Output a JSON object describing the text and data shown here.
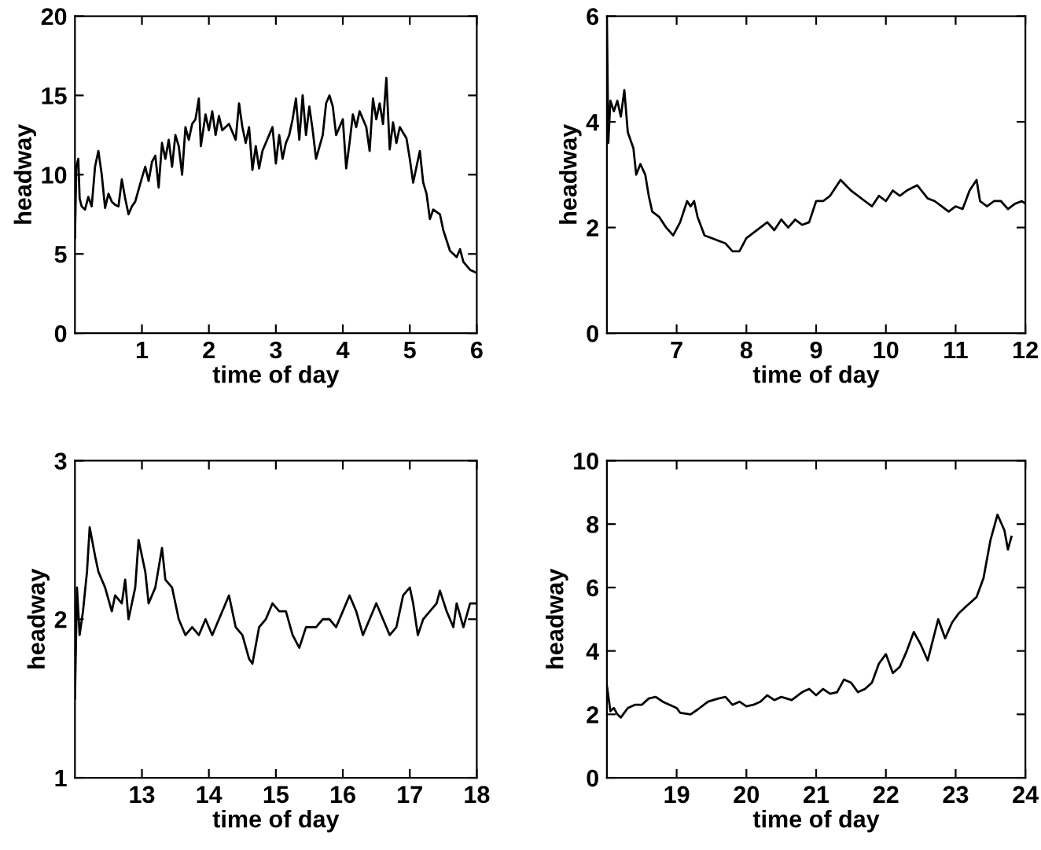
{
  "chart_data": [
    {
      "type": "line",
      "xlabel": "time of day",
      "ylabel": "headway",
      "xlim": [
        0,
        6
      ],
      "xticks": [
        1,
        2,
        3,
        4,
        5,
        6
      ],
      "ylim": [
        0,
        20
      ],
      "yticks": [
        0,
        5,
        10,
        15,
        20
      ],
      "grid": false,
      "legend": false,
      "series": [
        {
          "color": "#000000",
          "x": [
            0.0,
            0.02,
            0.05,
            0.07,
            0.1,
            0.15,
            0.2,
            0.25,
            0.3,
            0.35,
            0.4,
            0.45,
            0.5,
            0.55,
            0.6,
            0.65,
            0.7,
            0.75,
            0.8,
            0.85,
            0.9,
            1.0,
            1.05,
            1.1,
            1.15,
            1.2,
            1.25,
            1.3,
            1.35,
            1.4,
            1.45,
            1.5,
            1.55,
            1.6,
            1.65,
            1.7,
            1.75,
            1.8,
            1.85,
            1.88,
            1.95,
            2.0,
            2.05,
            2.1,
            2.15,
            2.2,
            2.3,
            2.4,
            2.45,
            2.5,
            2.55,
            2.6,
            2.65,
            2.7,
            2.75,
            2.8,
            2.9,
            2.95,
            3.0,
            3.05,
            3.1,
            3.15,
            3.2,
            3.25,
            3.3,
            3.35,
            3.4,
            3.45,
            3.5,
            3.55,
            3.6,
            3.7,
            3.75,
            3.8,
            3.85,
            3.9,
            4.0,
            4.05,
            4.1,
            4.15,
            4.2,
            4.25,
            4.35,
            4.4,
            4.45,
            4.5,
            4.55,
            4.6,
            4.65,
            4.7,
            4.75,
            4.8,
            4.85,
            4.95,
            5.0,
            5.05,
            5.1,
            5.15,
            5.2,
            5.25,
            5.3,
            5.35,
            5.45,
            5.5,
            5.6,
            5.7,
            5.75,
            5.8,
            5.9,
            6.0
          ],
          "values": [
            6,
            10.5,
            11,
            8.5,
            8,
            7.8,
            8.6,
            8,
            10.5,
            11.5,
            10,
            7.9,
            8.8,
            8.3,
            8.1,
            8,
            9.7,
            8.5,
            7.5,
            8,
            8.3,
            9.8,
            10.5,
            9.6,
            10.8,
            11.2,
            9.2,
            12,
            11,
            12.2,
            10.5,
            12.5,
            11.8,
            10,
            13,
            12.2,
            13.2,
            13.5,
            14.8,
            11.8,
            13.8,
            12.8,
            14,
            12.5,
            13.7,
            12.8,
            13.2,
            12.2,
            14.5,
            13,
            12,
            13,
            10.3,
            11.8,
            10.4,
            11.5,
            12.5,
            13,
            10.7,
            12.5,
            11,
            12,
            12.5,
            13.5,
            14.8,
            12.2,
            15,
            12.5,
            14.3,
            12.8,
            11,
            12.5,
            14.5,
            15,
            14.3,
            12.5,
            13.5,
            10.4,
            12,
            13.8,
            13,
            14,
            13,
            11.5,
            14.8,
            13.5,
            14.5,
            13.2,
            16.1,
            11.6,
            13.3,
            12,
            13,
            12.3,
            11,
            9.5,
            10.5,
            11.5,
            9.5,
            8.8,
            7.2,
            7.8,
            7.5,
            6.5,
            5.2,
            4.8,
            5.3,
            4.5,
            4,
            3.8
          ]
        }
      ]
    },
    {
      "type": "line",
      "xlabel": "time of day",
      "ylabel": "headway",
      "xlim": [
        6,
        12
      ],
      "xticks": [
        7,
        8,
        9,
        10,
        11,
        12
      ],
      "ylim": [
        0,
        6
      ],
      "yticks": [
        0,
        2,
        4,
        6
      ],
      "grid": false,
      "legend": false,
      "series": [
        {
          "color": "#000000",
          "x": [
            6.0,
            6.02,
            6.05,
            6.1,
            6.15,
            6.2,
            6.25,
            6.3,
            6.38,
            6.42,
            6.48,
            6.55,
            6.6,
            6.65,
            6.75,
            6.85,
            6.95,
            7.05,
            7.15,
            7.2,
            7.25,
            7.3,
            7.4,
            7.5,
            7.6,
            7.7,
            7.8,
            7.9,
            8.0,
            8.1,
            8.2,
            8.3,
            8.4,
            8.5,
            8.6,
            8.7,
            8.8,
            8.9,
            9.0,
            9.1,
            9.2,
            9.35,
            9.5,
            9.6,
            9.7,
            9.8,
            9.9,
            10.0,
            10.1,
            10.2,
            10.3,
            10.45,
            10.6,
            10.7,
            10.8,
            10.9,
            11.0,
            11.1,
            11.2,
            11.3,
            11.35,
            11.45,
            11.55,
            11.65,
            11.75,
            11.85,
            11.95,
            12.0
          ],
          "values": [
            6,
            3.6,
            4.4,
            4.2,
            4.4,
            4.1,
            4.6,
            3.8,
            3.5,
            3.0,
            3.2,
            3.0,
            2.6,
            2.3,
            2.2,
            2.0,
            1.85,
            2.1,
            2.5,
            2.4,
            2.5,
            2.2,
            1.85,
            1.8,
            1.75,
            1.7,
            1.55,
            1.55,
            1.8,
            1.9,
            2.0,
            2.1,
            1.95,
            2.15,
            2.0,
            2.15,
            2.05,
            2.1,
            2.5,
            2.5,
            2.6,
            2.9,
            2.7,
            2.6,
            2.5,
            2.4,
            2.6,
            2.5,
            2.7,
            2.6,
            2.7,
            2.8,
            2.55,
            2.5,
            2.4,
            2.3,
            2.4,
            2.35,
            2.7,
            2.9,
            2.5,
            2.4,
            2.5,
            2.5,
            2.35,
            2.45,
            2.5,
            2.45
          ]
        }
      ]
    },
    {
      "type": "line",
      "xlabel": "time of day",
      "ylabel": "headway",
      "xlim": [
        12,
        18
      ],
      "xticks": [
        13,
        14,
        15,
        16,
        17,
        18
      ],
      "ylim": [
        1,
        3
      ],
      "yticks": [
        1,
        2,
        3
      ],
      "grid": false,
      "legend": false,
      "series": [
        {
          "color": "#000000",
          "x": [
            12.0,
            12.03,
            12.07,
            12.12,
            12.18,
            12.22,
            12.3,
            12.35,
            12.45,
            12.55,
            12.6,
            12.7,
            12.75,
            12.8,
            12.9,
            12.95,
            13.05,
            13.1,
            13.2,
            13.3,
            13.35,
            13.45,
            13.55,
            13.65,
            13.75,
            13.85,
            13.95,
            14.05,
            14.15,
            14.3,
            14.4,
            14.5,
            14.6,
            14.65,
            14.75,
            14.85,
            14.95,
            15.05,
            15.15,
            15.25,
            15.35,
            15.45,
            15.6,
            15.7,
            15.8,
            15.9,
            16.0,
            16.1,
            16.2,
            16.3,
            16.4,
            16.5,
            16.6,
            16.7,
            16.8,
            16.9,
            17.0,
            17.05,
            17.12,
            17.2,
            17.3,
            17.4,
            17.45,
            17.55,
            17.65,
            17.7,
            17.8,
            17.9,
            18.0
          ],
          "values": [
            1.5,
            2.2,
            1.9,
            2.05,
            2.3,
            2.58,
            2.4,
            2.3,
            2.2,
            2.05,
            2.15,
            2.1,
            2.25,
            2.0,
            2.2,
            2.5,
            2.3,
            2.1,
            2.2,
            2.45,
            2.25,
            2.2,
            2.0,
            1.9,
            1.95,
            1.9,
            2.0,
            1.9,
            2.0,
            2.15,
            1.95,
            1.9,
            1.75,
            1.72,
            1.95,
            2.0,
            2.1,
            2.05,
            2.05,
            1.9,
            1.82,
            1.95,
            1.95,
            2.0,
            2.0,
            1.95,
            2.05,
            2.15,
            2.05,
            1.9,
            2.0,
            2.1,
            2.0,
            1.9,
            1.95,
            2.15,
            2.2,
            2.1,
            1.9,
            2.0,
            2.05,
            2.1,
            2.18,
            2.05,
            1.95,
            2.1,
            1.95,
            2.1,
            2.1
          ]
        }
      ]
    },
    {
      "type": "line",
      "xlabel": "time of day",
      "ylabel": "headway",
      "xlim": [
        18,
        24
      ],
      "xticks": [
        19,
        20,
        21,
        22,
        23,
        24
      ],
      "ylim": [
        0,
        10
      ],
      "yticks": [
        0,
        2,
        4,
        6,
        8,
        10
      ],
      "grid": false,
      "legend": false,
      "series": [
        {
          "color": "#000000",
          "x": [
            18.0,
            18.05,
            18.1,
            18.15,
            18.2,
            18.3,
            18.4,
            18.5,
            18.6,
            18.7,
            18.8,
            18.9,
            19.0,
            19.05,
            19.2,
            19.3,
            19.45,
            19.6,
            19.7,
            19.8,
            19.9,
            20.0,
            20.1,
            20.2,
            20.3,
            20.4,
            20.5,
            20.65,
            20.8,
            20.9,
            21.0,
            21.1,
            21.2,
            21.3,
            21.4,
            21.5,
            21.6,
            21.7,
            21.8,
            21.9,
            22.0,
            22.1,
            22.2,
            22.3,
            22.4,
            22.5,
            22.6,
            22.75,
            22.85,
            22.95,
            23.05,
            23.15,
            23.3,
            23.4,
            23.5,
            23.6,
            23.7,
            23.75,
            23.8
          ],
          "values": [
            2.9,
            2.1,
            2.2,
            2.0,
            1.9,
            2.2,
            2.3,
            2.3,
            2.5,
            2.55,
            2.4,
            2.3,
            2.2,
            2.05,
            2.0,
            2.15,
            2.4,
            2.5,
            2.55,
            2.3,
            2.4,
            2.25,
            2.3,
            2.4,
            2.6,
            2.45,
            2.55,
            2.45,
            2.7,
            2.8,
            2.6,
            2.8,
            2.65,
            2.7,
            3.1,
            3.0,
            2.7,
            2.8,
            3.0,
            3.6,
            3.9,
            3.3,
            3.5,
            4.0,
            4.6,
            4.2,
            3.7,
            5.0,
            4.4,
            4.9,
            5.2,
            5.4,
            5.7,
            6.3,
            7.5,
            8.3,
            7.8,
            7.2,
            7.6
          ]
        }
      ]
    }
  ]
}
